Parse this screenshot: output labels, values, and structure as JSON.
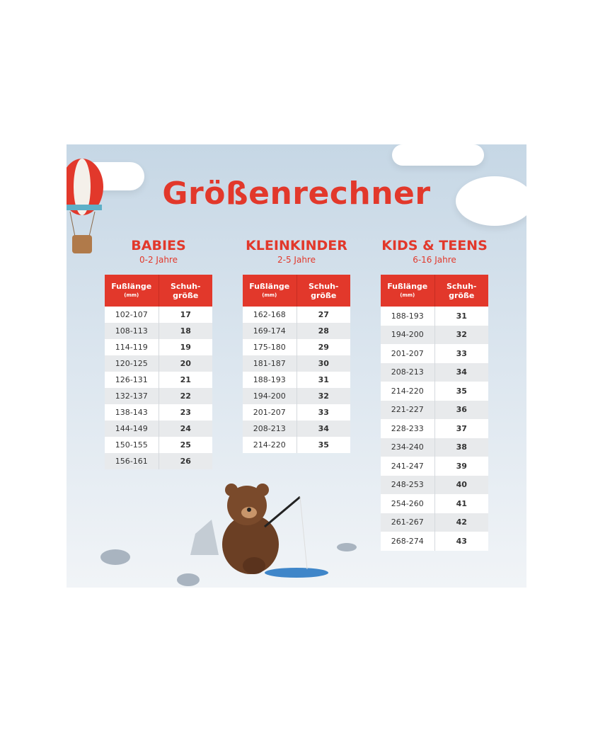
{
  "title": "Größenrechner",
  "header": {
    "length": "Fußlänge",
    "unit": "(mm)",
    "size1": "Schuh-",
    "size2": "größe"
  },
  "groups": [
    {
      "name": "BABIES",
      "ages": "0-2 Jahre",
      "rows": [
        [
          "102-107",
          "17"
        ],
        [
          "108-113",
          "18"
        ],
        [
          "114-119",
          "19"
        ],
        [
          "120-125",
          "20"
        ],
        [
          "126-131",
          "21"
        ],
        [
          "132-137",
          "22"
        ],
        [
          "138-143",
          "23"
        ],
        [
          "144-149",
          "24"
        ],
        [
          "150-155",
          "25"
        ],
        [
          "156-161",
          "26"
        ]
      ]
    },
    {
      "name": "KLEINKINDER",
      "ages": "2-5 Jahre",
      "rows": [
        [
          "162-168",
          "27"
        ],
        [
          "169-174",
          "28"
        ],
        [
          "175-180",
          "29"
        ],
        [
          "181-187",
          "30"
        ],
        [
          "188-193",
          "31"
        ],
        [
          "194-200",
          "32"
        ],
        [
          "201-207",
          "33"
        ],
        [
          "208-213",
          "34"
        ],
        [
          "214-220",
          "35"
        ]
      ]
    },
    {
      "name": "KIDS & TEENS",
      "ages": "6-16 Jahre",
      "rows": [
        [
          "188-193",
          "31"
        ],
        [
          "194-200",
          "32"
        ],
        [
          "201-207",
          "33"
        ],
        [
          "208-213",
          "34"
        ],
        [
          "214-220",
          "35"
        ],
        [
          "221-227",
          "36"
        ],
        [
          "228-233",
          "37"
        ],
        [
          "234-240",
          "38"
        ],
        [
          "241-247",
          "39"
        ],
        [
          "248-253",
          "40"
        ],
        [
          "254-260",
          "41"
        ],
        [
          "261-267",
          "42"
        ],
        [
          "268-274",
          "43"
        ]
      ]
    }
  ],
  "colors": {
    "accent": "#e2382b"
  }
}
